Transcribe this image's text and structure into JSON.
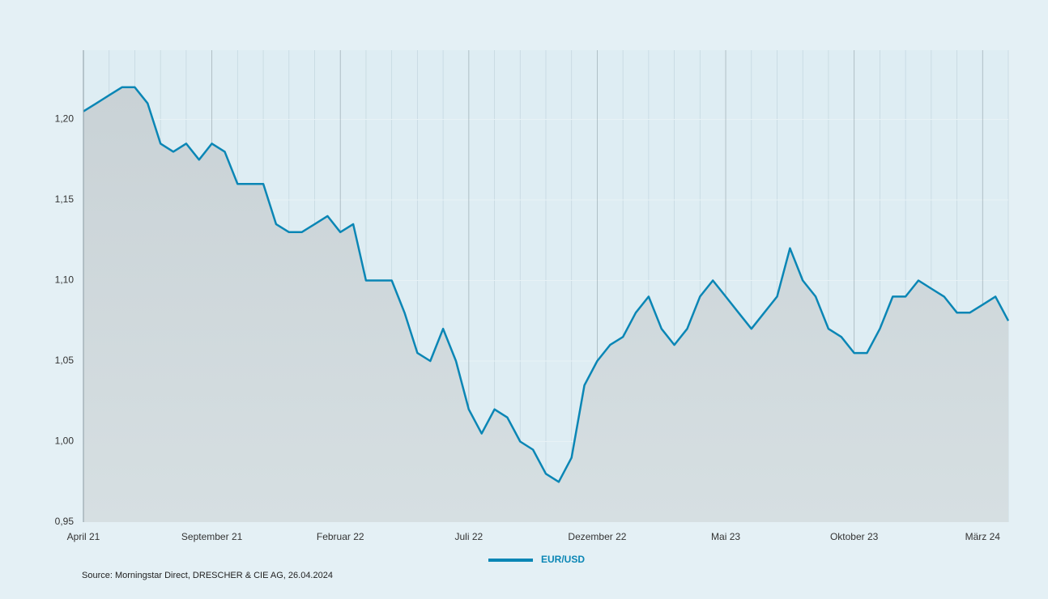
{
  "chart_data": {
    "type": "line",
    "source": "Source: Morningstar Direct, DRESCHER & CIE AG, 26.04.2024",
    "categories": [
      "April 21",
      null,
      null,
      null,
      null,
      null,
      null,
      null,
      null,
      null,
      "September 21",
      null,
      null,
      null,
      null,
      null,
      null,
      null,
      null,
      null,
      "Februar 22",
      null,
      null,
      null,
      null,
      null,
      null,
      null,
      null,
      null,
      "Juli 22",
      null,
      null,
      null,
      null,
      null,
      null,
      null,
      null,
      null,
      "Dezember 22",
      null,
      null,
      null,
      null,
      null,
      null,
      null,
      null,
      null,
      "Mai 23",
      null,
      null,
      null,
      null,
      null,
      null,
      null,
      null,
      null,
      "Oktober 23",
      null,
      null,
      null,
      null,
      null,
      null,
      null,
      null,
      null,
      "März 24",
      null,
      null
    ],
    "series": [
      {
        "name": "EUR/USD",
        "color": "#0a86b5",
        "values": [
          1.205,
          1.21,
          1.215,
          1.22,
          1.22,
          1.21,
          1.185,
          1.18,
          1.185,
          1.175,
          1.185,
          1.18,
          1.16,
          1.16,
          1.16,
          1.135,
          1.13,
          1.13,
          1.135,
          1.14,
          1.13,
          1.135,
          1.1,
          1.1,
          1.1,
          1.08,
          1.055,
          1.05,
          1.07,
          1.05,
          1.02,
          1.005,
          1.02,
          1.015,
          1.0,
          0.995,
          0.98,
          0.975,
          0.99,
          1.035,
          1.05,
          1.06,
          1.065,
          1.08,
          1.09,
          1.07,
          1.06,
          1.07,
          1.09,
          1.1,
          1.09,
          1.08,
          1.07,
          1.08,
          1.09,
          1.12,
          1.1,
          1.09,
          1.07,
          1.065,
          1.055,
          1.055,
          1.07,
          1.09,
          1.09,
          1.1,
          1.095,
          1.09,
          1.08,
          1.08,
          1.085,
          1.09,
          1.075
        ]
      }
    ],
    "ylim": [
      0.95,
      1.243
    ],
    "yticks": [
      {
        "value": 0.95,
        "label": "0,95"
      },
      {
        "value": 1.0,
        "label": "1,00"
      },
      {
        "value": 1.05,
        "label": "1,05"
      },
      {
        "value": 1.1,
        "label": "1,10"
      },
      {
        "value": 1.15,
        "label": "1,15"
      },
      {
        "value": 1.2,
        "label": "1,20"
      }
    ],
    "grid": true
  }
}
